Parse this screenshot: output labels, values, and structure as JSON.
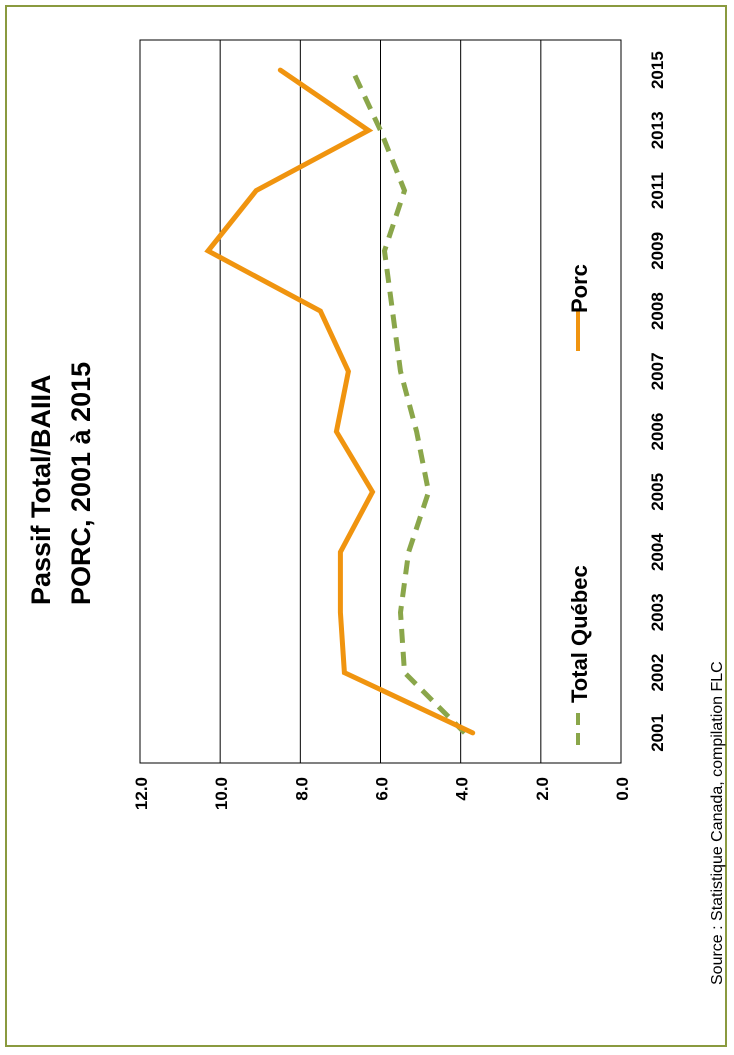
{
  "chart_data": {
    "type": "line",
    "title": "Passif Total/BAIIA",
    "subtitle": "PORC, 2001 à 2015",
    "categories": [
      "2001",
      "2002",
      "2003",
      "2004",
      "2005",
      "2006",
      "2007",
      "2008",
      "2009",
      "2011",
      "2013",
      "2015"
    ],
    "series": [
      {
        "name": "Total Québec",
        "style": "dashed",
        "color": "#8aa64a",
        "values": [
          3.9,
          5.4,
          5.5,
          5.3,
          4.8,
          5.1,
          5.5,
          5.7,
          5.9,
          5.4,
          6.0,
          6.7
        ]
      },
      {
        "name": "Porc",
        "style": "solid",
        "color": "#f0940f",
        "values": [
          3.7,
          6.9,
          7.0,
          7.0,
          6.2,
          7.1,
          6.8,
          7.5,
          10.3,
          9.1,
          6.3,
          8.5
        ]
      }
    ],
    "ylim": [
      0,
      12
    ],
    "yticks": [
      "0.0",
      "2.0",
      "4.0",
      "6.0",
      "8.0",
      "10.0",
      "12.0"
    ],
    "grid": true,
    "legend": "inside-plot",
    "source": "Source : Statistique Canada, compilation FLC"
  }
}
